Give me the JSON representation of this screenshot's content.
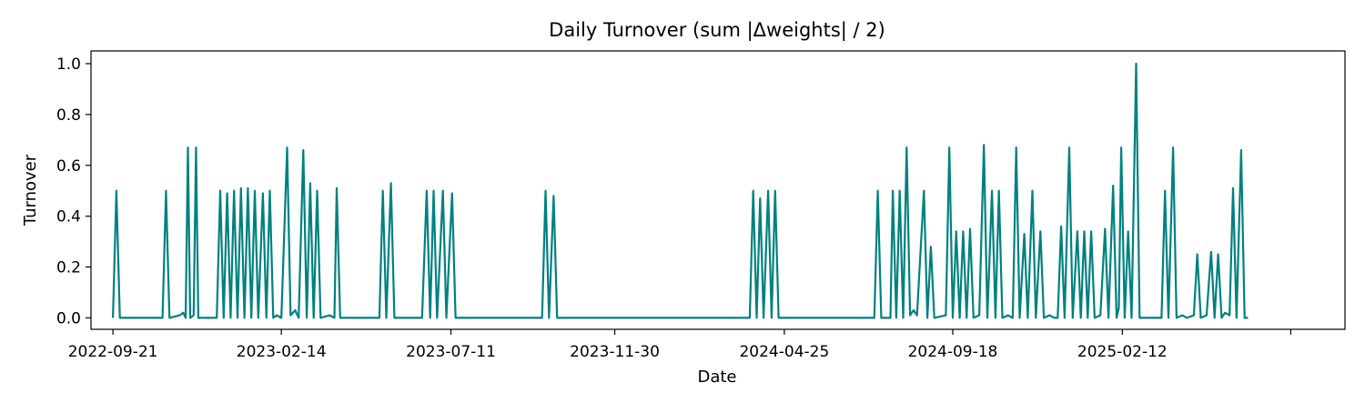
{
  "chart_data": {
    "type": "line",
    "title": "Daily Turnover (sum |Δweights| / 2)",
    "xlabel": "Date",
    "ylabel": "Turnover",
    "x_tick_labels": [
      "2022-09-21",
      "2023-02-14",
      "2023-07-11",
      "2023-11-30",
      "2024-04-25",
      "2024-09-18",
      "2025-02-12"
    ],
    "y_tick_labels": [
      "0.0",
      "0.2",
      "0.4",
      "0.6",
      "0.8",
      "1.0"
    ],
    "xlim": [
      "2022-09-02",
      "2025-08-24"
    ],
    "ylim": [
      -0.045,
      1.05
    ],
    "grid": false,
    "line_color": "#008080",
    "series": [
      {
        "points": [
          [
            "2022-09-21",
            0.0
          ],
          [
            "2022-09-24",
            0.5
          ],
          [
            "2022-09-27",
            0.0
          ],
          [
            "2022-11-03",
            0.0
          ],
          [
            "2022-11-06",
            0.5
          ],
          [
            "2022-11-09",
            0.0
          ],
          [
            "2022-11-18",
            0.01
          ],
          [
            "2022-11-21",
            0.02
          ],
          [
            "2022-11-23",
            0.0
          ],
          [
            "2022-11-25",
            0.67
          ],
          [
            "2022-11-27",
            0.0
          ],
          [
            "2022-11-30",
            0.01
          ],
          [
            "2022-12-02",
            0.67
          ],
          [
            "2022-12-04",
            0.0
          ],
          [
            "2022-12-20",
            0.0
          ],
          [
            "2022-12-23",
            0.5
          ],
          [
            "2022-12-26",
            0.0
          ],
          [
            "2022-12-29",
            0.49
          ],
          [
            "2023-01-01",
            0.0
          ],
          [
            "2023-01-04",
            0.5
          ],
          [
            "2023-01-07",
            0.0
          ],
          [
            "2023-01-10",
            0.51
          ],
          [
            "2023-01-13",
            0.0
          ],
          [
            "2023-01-16",
            0.51
          ],
          [
            "2023-01-19",
            0.0
          ],
          [
            "2023-01-22",
            0.5
          ],
          [
            "2023-01-25",
            0.0
          ],
          [
            "2023-01-29",
            0.49
          ],
          [
            "2023-02-01",
            0.0
          ],
          [
            "2023-02-04",
            0.5
          ],
          [
            "2023-02-07",
            0.0
          ],
          [
            "2023-02-10",
            0.01
          ],
          [
            "2023-02-14",
            0.0
          ],
          [
            "2023-02-19",
            0.67
          ],
          [
            "2023-02-22",
            0.01
          ],
          [
            "2023-02-26",
            0.03
          ],
          [
            "2023-03-01",
            0.0
          ],
          [
            "2023-03-05",
            0.66
          ],
          [
            "2023-03-08",
            0.0
          ],
          [
            "2023-03-11",
            0.53
          ],
          [
            "2023-03-14",
            0.0
          ],
          [
            "2023-03-17",
            0.5
          ],
          [
            "2023-03-20",
            0.0
          ],
          [
            "2023-03-28",
            0.01
          ],
          [
            "2023-04-01",
            0.0
          ],
          [
            "2023-04-03",
            0.51
          ],
          [
            "2023-04-06",
            0.0
          ],
          [
            "2023-05-10",
            0.0
          ],
          [
            "2023-05-13",
            0.5
          ],
          [
            "2023-05-16",
            0.0
          ],
          [
            "2023-05-20",
            0.53
          ],
          [
            "2023-05-23",
            0.0
          ],
          [
            "2023-06-16",
            0.0
          ],
          [
            "2023-06-20",
            0.5
          ],
          [
            "2023-06-23",
            0.0
          ],
          [
            "2023-06-26",
            0.5
          ],
          [
            "2023-06-29",
            0.0
          ],
          [
            "2023-07-04",
            0.5
          ],
          [
            "2023-07-07",
            0.0
          ],
          [
            "2023-07-12",
            0.49
          ],
          [
            "2023-07-15",
            0.0
          ],
          [
            "2023-09-28",
            0.0
          ],
          [
            "2023-10-01",
            0.5
          ],
          [
            "2023-10-04",
            0.0
          ],
          [
            "2023-10-08",
            0.48
          ],
          [
            "2023-10-11",
            0.0
          ],
          [
            "2024-03-26",
            0.0
          ],
          [
            "2024-03-29",
            0.5
          ],
          [
            "2024-04-01",
            0.0
          ],
          [
            "2024-04-04",
            0.47
          ],
          [
            "2024-04-07",
            0.0
          ],
          [
            "2024-04-11",
            0.5
          ],
          [
            "2024-04-14",
            0.0
          ],
          [
            "2024-04-17",
            0.5
          ],
          [
            "2024-04-20",
            0.0
          ],
          [
            "2024-07-12",
            0.0
          ],
          [
            "2024-07-15",
            0.5
          ],
          [
            "2024-07-18",
            0.0
          ],
          [
            "2024-07-26",
            0.0
          ],
          [
            "2024-07-28",
            0.5
          ],
          [
            "2024-07-31",
            0.0
          ],
          [
            "2024-08-03",
            0.5
          ],
          [
            "2024-08-06",
            0.0
          ],
          [
            "2024-08-09",
            0.67
          ],
          [
            "2024-08-12",
            0.01
          ],
          [
            "2024-08-15",
            0.03
          ],
          [
            "2024-08-18",
            0.01
          ],
          [
            "2024-08-24",
            0.5
          ],
          [
            "2024-08-27",
            0.0
          ],
          [
            "2024-08-30",
            0.28
          ],
          [
            "2024-09-02",
            0.0
          ],
          [
            "2024-09-12",
            0.01
          ],
          [
            "2024-09-15",
            0.67
          ],
          [
            "2024-09-18",
            0.0
          ],
          [
            "2024-09-21",
            0.34
          ],
          [
            "2024-09-24",
            0.0
          ],
          [
            "2024-09-27",
            0.34
          ],
          [
            "2024-09-30",
            0.0
          ],
          [
            "2024-10-03",
            0.35
          ],
          [
            "2024-10-06",
            0.0
          ],
          [
            "2024-10-11",
            0.01
          ],
          [
            "2024-10-15",
            0.68
          ],
          [
            "2024-10-18",
            0.0
          ],
          [
            "2024-10-22",
            0.5
          ],
          [
            "2024-10-25",
            0.0
          ],
          [
            "2024-10-28",
            0.5
          ],
          [
            "2024-10-31",
            0.0
          ],
          [
            "2024-11-05",
            0.01
          ],
          [
            "2024-11-09",
            0.0
          ],
          [
            "2024-11-12",
            0.67
          ],
          [
            "2024-11-15",
            0.0
          ],
          [
            "2024-11-19",
            0.33
          ],
          [
            "2024-11-22",
            0.0
          ],
          [
            "2024-11-26",
            0.5
          ],
          [
            "2024-11-29",
            0.0
          ],
          [
            "2024-12-03",
            0.34
          ],
          [
            "2024-12-06",
            0.0
          ],
          [
            "2024-12-11",
            0.01
          ],
          [
            "2024-12-15",
            0.0
          ],
          [
            "2024-12-18",
            0.0
          ],
          [
            "2024-12-21",
            0.36
          ],
          [
            "2024-12-24",
            0.0
          ],
          [
            "2024-12-28",
            0.67
          ],
          [
            "2024-12-31",
            0.0
          ],
          [
            "2025-01-04",
            0.34
          ],
          [
            "2025-01-07",
            0.0
          ],
          [
            "2025-01-10",
            0.34
          ],
          [
            "2025-01-13",
            0.0
          ],
          [
            "2025-01-16",
            0.34
          ],
          [
            "2025-01-19",
            0.0
          ],
          [
            "2025-01-24",
            0.01
          ],
          [
            "2025-01-28",
            0.35
          ],
          [
            "2025-01-31",
            0.0
          ],
          [
            "2025-02-04",
            0.52
          ],
          [
            "2025-02-07",
            0.0
          ],
          [
            "2025-02-09",
            0.04
          ],
          [
            "2025-02-11",
            0.67
          ],
          [
            "2025-02-14",
            0.0
          ],
          [
            "2025-02-17",
            0.34
          ],
          [
            "2025-02-20",
            0.0
          ],
          [
            "2025-02-24",
            1.0
          ],
          [
            "2025-02-27",
            0.0
          ],
          [
            "2025-03-18",
            0.0
          ],
          [
            "2025-03-21",
            0.5
          ],
          [
            "2025-03-24",
            0.0
          ],
          [
            "2025-03-28",
            0.67
          ],
          [
            "2025-03-31",
            0.0
          ],
          [
            "2025-04-05",
            0.01
          ],
          [
            "2025-04-09",
            0.0
          ],
          [
            "2025-04-15",
            0.01
          ],
          [
            "2025-04-18",
            0.25
          ],
          [
            "2025-04-21",
            0.0
          ],
          [
            "2025-04-26",
            0.01
          ],
          [
            "2025-04-30",
            0.26
          ],
          [
            "2025-05-03",
            0.0
          ],
          [
            "2025-05-06",
            0.25
          ],
          [
            "2025-05-09",
            0.0
          ],
          [
            "2025-05-12",
            0.02
          ],
          [
            "2025-05-16",
            0.01
          ],
          [
            "2025-05-19",
            0.51
          ],
          [
            "2025-05-22",
            0.0
          ],
          [
            "2025-05-26",
            0.66
          ],
          [
            "2025-05-29",
            0.0
          ],
          [
            "2025-06-01",
            0.0
          ]
        ]
      }
    ]
  }
}
